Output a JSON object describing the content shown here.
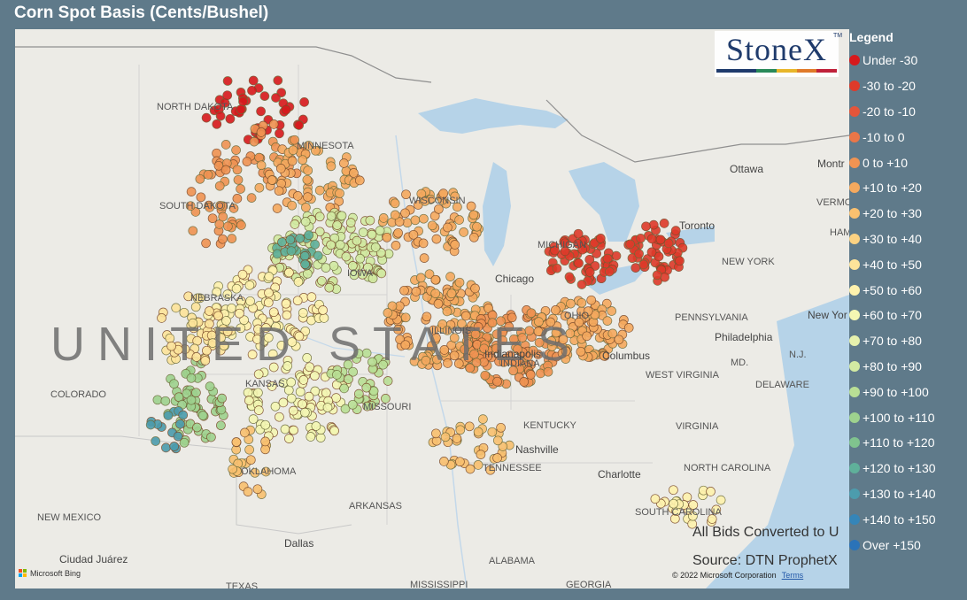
{
  "title": "Corn Spot Basis (Cents/Bushel)",
  "logo": {
    "text": "StoneX",
    "stripes": [
      "#1f3b6c",
      "#1f3b6c",
      "#2a8a5a",
      "#e8b62a",
      "#e07a2a",
      "#c0213a"
    ]
  },
  "legend": {
    "title": "Legend",
    "items": [
      {
        "label": "Under -30",
        "color": "#d7191c"
      },
      {
        "label": "-30 to -20",
        "color": "#de3a2a"
      },
      {
        "label": "-20 to -10",
        "color": "#e4553a"
      },
      {
        "label": "-10 to 0",
        "color": "#ea7648"
      },
      {
        "label": "0 to +10",
        "color": "#f09352"
      },
      {
        "label": "+10 to +20",
        "color": "#f5a95e"
      },
      {
        "label": "+20 to +30",
        "color": "#f9c06f"
      },
      {
        "label": "+30 to +40",
        "color": "#fbd282"
      },
      {
        "label": "+40 to +50",
        "color": "#fde49a"
      },
      {
        "label": "+50 to +60",
        "color": "#fef2ad"
      },
      {
        "label": "+60 to +70",
        "color": "#f4f7b3"
      },
      {
        "label": "+70 to +80",
        "color": "#e6f1ad"
      },
      {
        "label": "+80 to +90",
        "color": "#d2eaa2"
      },
      {
        "label": "+90 to +100",
        "color": "#b9df95"
      },
      {
        "label": "+100 to +110",
        "color": "#9ed28e"
      },
      {
        "label": "+110 to +120",
        "color": "#80c38e"
      },
      {
        "label": "+120 to +130",
        "color": "#5fb09a"
      },
      {
        "label": "+130 to +140",
        "color": "#4c9cad"
      },
      {
        "label": "+140 to +150",
        "color": "#3585b8"
      },
      {
        "label": "Over +150",
        "color": "#2b73b8"
      }
    ]
  },
  "map": {
    "country_label": "UNITED STATES",
    "state_labels": {
      "north_dakota": "NORTH DAKOTA",
      "minnesota": "MINNESOTA",
      "south_dakota": "SOUTH DAKOTA",
      "wisconsin": "WISCONSIN",
      "michigan": "MICHIGAN",
      "nebraska": "NEBRASKA",
      "iowa": "IOWA",
      "illinois": "ILLINOIS",
      "indiana": "INDIANA",
      "ohio": "OHIO",
      "colorado": "COLORADO",
      "kansas": "KANSAS",
      "missouri": "MISSOURI",
      "kentucky": "KENTUCKY",
      "tennessee": "TENNESSEE",
      "west_virginia": "WEST VIRGINIA",
      "virginia": "VIRGINIA",
      "north_carolina": "NORTH CAROLINA",
      "south_carolina": "SOUTH CAROLINA",
      "georgia": "GEORGIA",
      "alabama": "ALABAMA",
      "mississippi": "MISSISSIPPI",
      "arkansas": "ARKANSAS",
      "oklahoma": "OKLAHOMA",
      "new_mexico": "NEW MEXICO",
      "texas": "TEXAS",
      "pennsylvania": "PENNSYLVANIA",
      "new_york": "NEW YORK",
      "maryland": "MD.",
      "delaware": "DELAWARE",
      "new_jersey": "N.J.",
      "vermont": "VERMO",
      "new_hampshire": "HAM"
    },
    "cities": {
      "chicago": "Chicago",
      "ottawa": "Ottawa",
      "montreal": "Montr",
      "toronto": "Toronto",
      "new_york": "New Yor",
      "philadelphia": "Philadelphia",
      "columbus": "Columbus",
      "indianapolis": "Indianapolis",
      "nashville": "Nashville",
      "charlotte": "Charlotte",
      "dallas": "Dallas",
      "ciudad_juarez": "Ciudad Juárez"
    },
    "note_conversion": "All Bids Converted to U",
    "note_source": "Source: DTN ProphetX",
    "copyright": "© 2022 Microsoft Corporation",
    "terms_link": "Terms",
    "ms_logo": "Microsoft Bing"
  },
  "point_clusters": [
    {
      "name": "north-dakota-red",
      "bin": 0,
      "n": 45
    },
    {
      "name": "north-dakota-orange",
      "bin": 4,
      "n": 35
    },
    {
      "name": "minnesota-orange",
      "bin": 5,
      "n": 70
    },
    {
      "name": "south-dakota-orange",
      "bin": 4,
      "n": 40
    },
    {
      "name": "iowa-green",
      "bin": 12,
      "n": 130
    },
    {
      "name": "iowa-teal",
      "bin": 16,
      "n": 25
    },
    {
      "name": "nebraska-yellow",
      "bin": 9,
      "n": 110
    },
    {
      "name": "kansas-yellow",
      "bin": 10,
      "n": 90
    },
    {
      "name": "colorado-green",
      "bin": 14,
      "n": 60
    },
    {
      "name": "colorado-teal",
      "bin": 17,
      "n": 15
    },
    {
      "name": "wisconsin-orange",
      "bin": 5,
      "n": 70
    },
    {
      "name": "illinois-orange",
      "bin": 5,
      "n": 140
    },
    {
      "name": "indiana-orange",
      "bin": 4,
      "n": 130
    },
    {
      "name": "ohio-orange",
      "bin": 5,
      "n": 100
    },
    {
      "name": "michigan-red",
      "bin": 1,
      "n": 65
    },
    {
      "name": "ontario-red",
      "bin": 1,
      "n": 55
    },
    {
      "name": "missouri-green",
      "bin": 13,
      "n": 40
    },
    {
      "name": "southern-plains-yellow",
      "bin": 8,
      "n": 50
    },
    {
      "name": "oklahoma-orange",
      "bin": 6,
      "n": 25
    },
    {
      "name": "kentucky-orange",
      "bin": 6,
      "n": 40
    },
    {
      "name": "carolinas-yellow",
      "bin": 9,
      "n": 25
    }
  ]
}
